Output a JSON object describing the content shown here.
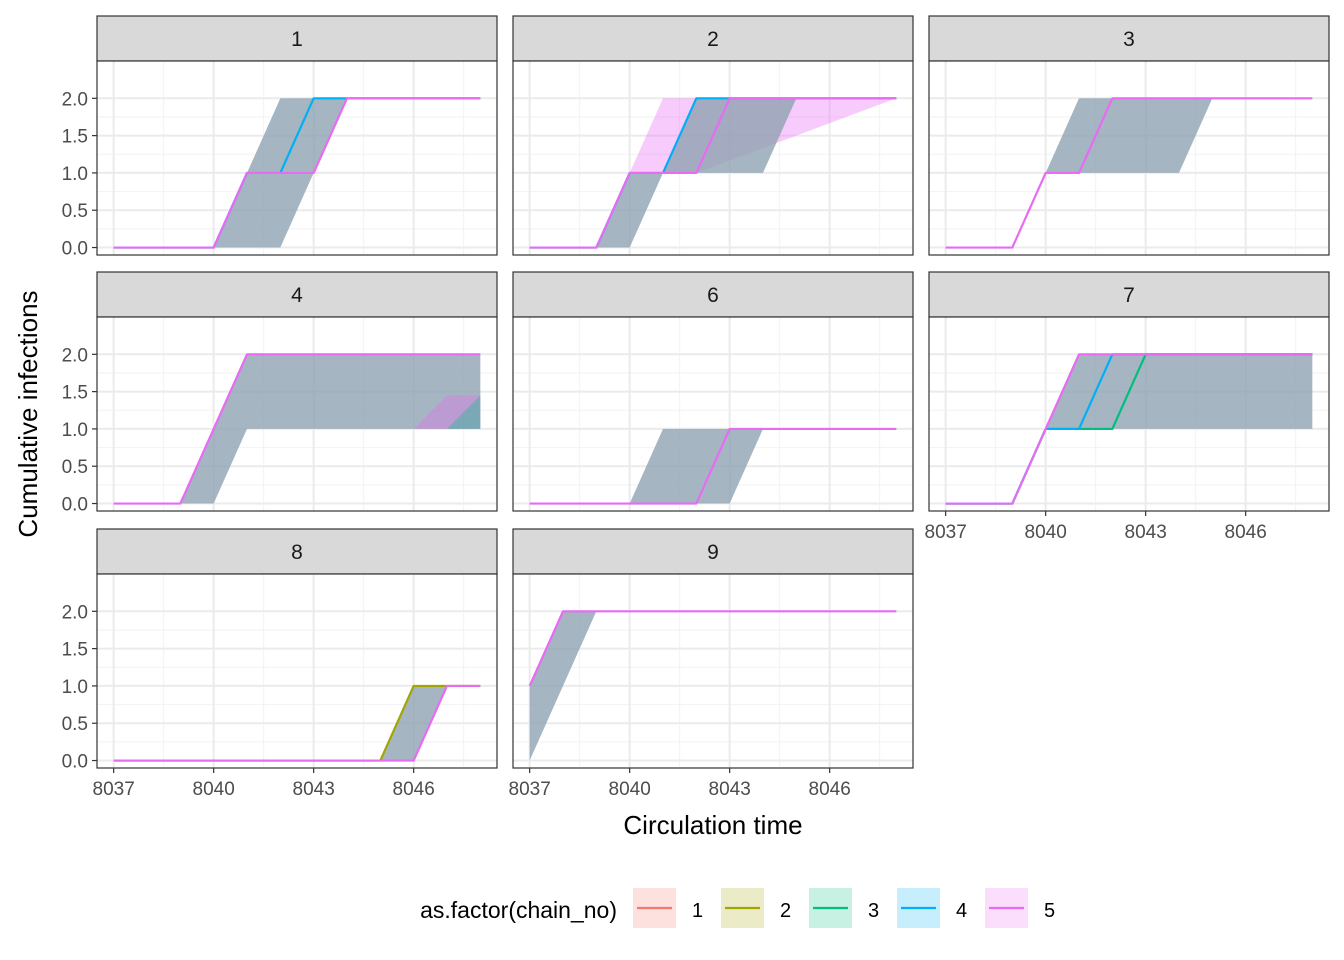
{
  "chart_data": {
    "type": "line",
    "xlabel": "Circulation time",
    "ylabel": "Cumulative infections",
    "xlim": [
      8036.5,
      8048.5
    ],
    "ylim": [
      -0.1,
      2.5
    ],
    "x_ticks": [
      8037,
      8040,
      8043,
      8046
    ],
    "x_tick_labels": [
      "8037",
      "8040",
      "8043",
      "8046"
    ],
    "y_ticks": [
      0,
      0.5,
      1,
      1.5,
      2
    ],
    "y_tick_labels": [
      "0.0",
      "0.5",
      "1.0",
      "1.5",
      "2.0"
    ],
    "grid": true,
    "legend": {
      "title": "as.factor(chain_no)",
      "position": "bottom",
      "entries": [
        {
          "label": "1",
          "color": "#F8766D"
        },
        {
          "label": "2",
          "color": "#A3A500"
        },
        {
          "label": "3",
          "color": "#00BF7D"
        },
        {
          "label": "4",
          "color": "#00B0F6"
        },
        {
          "label": "5",
          "color": "#E76BF3"
        }
      ]
    },
    "band_color": "#8FA3B3",
    "panels": [
      {
        "label": "1",
        "bands": [
          {
            "upper": [
              [
                8037,
                0
              ],
              [
                8040,
                0
              ],
              [
                8042,
                2
              ],
              [
                8048,
                2
              ]
            ],
            "lower": [
              [
                8037,
                0
              ],
              [
                8042,
                0
              ],
              [
                8043,
                1
              ],
              [
                8044,
                2
              ],
              [
                8048,
                2
              ]
            ]
          }
        ],
        "series": [
          {
            "chain": "4",
            "points": [
              [
                8037,
                0
              ],
              [
                8040,
                0
              ],
              [
                8041,
                1
              ],
              [
                8042,
                1
              ],
              [
                8043,
                2
              ],
              [
                8048,
                2
              ]
            ]
          },
          {
            "chain": "5",
            "points": [
              [
                8037,
                0
              ],
              [
                8040,
                0
              ],
              [
                8041,
                1
              ],
              [
                8043,
                1
              ],
              [
                8044,
                2
              ],
              [
                8048,
                2
              ]
            ]
          }
        ]
      },
      {
        "label": "2",
        "bands": [
          {
            "upper": [
              [
                8037,
                0
              ],
              [
                8039,
                0
              ],
              [
                8040,
                1
              ],
              [
                8041,
                2
              ],
              [
                8048,
                2
              ]
            ],
            "lower": [
              [
                8037,
                0
              ],
              [
                8039,
                0
              ],
              [
                8040,
                1
              ],
              [
                8041,
                1
              ],
              [
                8042,
                1
              ],
              [
                8048,
                2
              ]
            ],
            "chain": "5"
          },
          {
            "upper": [
              [
                8037,
                0
              ],
              [
                8039,
                0
              ],
              [
                8040,
                1
              ],
              [
                8041,
                1
              ],
              [
                8042,
                2
              ],
              [
                8048,
                2
              ]
            ],
            "lower": [
              [
                8037,
                0
              ],
              [
                8040,
                0
              ],
              [
                8041,
                1
              ],
              [
                8044,
                1
              ],
              [
                8045,
                2
              ],
              [
                8048,
                2
              ]
            ]
          }
        ],
        "series": [
          {
            "chain": "4",
            "points": [
              [
                8037,
                0
              ],
              [
                8039,
                0
              ],
              [
                8040,
                1
              ],
              [
                8041,
                1
              ],
              [
                8042,
                2
              ],
              [
                8048,
                2
              ]
            ]
          },
          {
            "chain": "5",
            "points": [
              [
                8037,
                0
              ],
              [
                8039,
                0
              ],
              [
                8040,
                1
              ],
              [
                8042,
                1
              ],
              [
                8043,
                2
              ],
              [
                8048,
                2
              ]
            ]
          }
        ]
      },
      {
        "label": "3",
        "bands": [
          {
            "upper": [
              [
                8037,
                0
              ],
              [
                8039,
                0
              ],
              [
                8040,
                1
              ],
              [
                8041,
                2
              ],
              [
                8048,
                2
              ]
            ],
            "lower": [
              [
                8037,
                0
              ],
              [
                8039,
                0
              ],
              [
                8040,
                1
              ],
              [
                8044,
                1
              ],
              [
                8045,
                2
              ],
              [
                8048,
                2
              ]
            ]
          }
        ],
        "series": [
          {
            "chain": "5",
            "points": [
              [
                8037,
                0
              ],
              [
                8039,
                0
              ],
              [
                8040,
                1
              ],
              [
                8041,
                1
              ],
              [
                8042,
                2
              ],
              [
                8048,
                2
              ]
            ]
          }
        ]
      },
      {
        "label": "4",
        "bands": [
          {
            "upper": [
              [
                8037,
                0
              ],
              [
                8039,
                0
              ],
              [
                8041,
                2
              ],
              [
                8048,
                2
              ]
            ],
            "lower": [
              [
                8037,
                0
              ],
              [
                8040,
                0
              ],
              [
                8041,
                1
              ],
              [
                8048,
                1
              ]
            ]
          },
          {
            "upper": [
              [
                8046,
                1
              ],
              [
                8047,
                1.45
              ],
              [
                8048,
                1.45
              ]
            ],
            "lower": [
              [
                8046,
                1
              ],
              [
                8048,
                1
              ]
            ],
            "chain": "5"
          },
          {
            "upper": [
              [
                8047,
                1
              ],
              [
                8048,
                1.45
              ]
            ],
            "lower": [
              [
                8047,
                1
              ],
              [
                8048,
                1
              ]
            ],
            "chain": "3"
          }
        ],
        "series": [
          {
            "chain": "5",
            "points": [
              [
                8037,
                0
              ],
              [
                8039,
                0
              ],
              [
                8041,
                2
              ],
              [
                8048,
                2
              ]
            ]
          }
        ]
      },
      {
        "label": "6",
        "bands": [
          {
            "upper": [
              [
                8037,
                0
              ],
              [
                8040,
                0
              ],
              [
                8041,
                1
              ],
              [
                8048,
                1
              ]
            ],
            "lower": [
              [
                8037,
                0
              ],
              [
                8043,
                0
              ],
              [
                8044,
                1
              ],
              [
                8048,
                1
              ]
            ]
          }
        ],
        "series": [
          {
            "chain": "5",
            "points": [
              [
                8037,
                0
              ],
              [
                8042,
                0
              ],
              [
                8043,
                1
              ],
              [
                8048,
                1
              ]
            ]
          }
        ]
      },
      {
        "label": "7",
        "bands": [
          {
            "upper": [
              [
                8037,
                0
              ],
              [
                8039,
                0
              ],
              [
                8041,
                2
              ],
              [
                8048,
                2
              ]
            ],
            "lower": [
              [
                8037,
                0
              ],
              [
                8039,
                0
              ],
              [
                8040,
                1
              ],
              [
                8048,
                1
              ]
            ]
          }
        ],
        "series": [
          {
            "chain": "3",
            "points": [
              [
                8037,
                0
              ],
              [
                8039,
                0
              ],
              [
                8040,
                1
              ],
              [
                8042,
                1
              ],
              [
                8043,
                2
              ],
              [
                8048,
                2
              ]
            ]
          },
          {
            "chain": "4",
            "points": [
              [
                8037,
                0
              ],
              [
                8039,
                0
              ],
              [
                8040,
                1
              ],
              [
                8041,
                1
              ],
              [
                8042,
                2
              ],
              [
                8048,
                2
              ]
            ]
          },
          {
            "chain": "5",
            "points": [
              [
                8037,
                0
              ],
              [
                8039,
                0
              ],
              [
                8041,
                2
              ],
              [
                8048,
                2
              ]
            ]
          }
        ]
      },
      {
        "label": "8",
        "bands": [
          {
            "upper": [
              [
                8037,
                0
              ],
              [
                8045,
                0
              ],
              [
                8046,
                1
              ],
              [
                8048,
                1
              ]
            ],
            "lower": [
              [
                8037,
                0
              ],
              [
                8046,
                0
              ],
              [
                8047,
                1
              ],
              [
                8048,
                1
              ]
            ]
          }
        ],
        "series": [
          {
            "chain": "2",
            "points": [
              [
                8037,
                0
              ],
              [
                8045,
                0
              ],
              [
                8046,
                1
              ],
              [
                8048,
                1
              ]
            ]
          },
          {
            "chain": "5",
            "points": [
              [
                8037,
                0
              ],
              [
                8046,
                0
              ],
              [
                8047,
                1
              ],
              [
                8048,
                1
              ]
            ]
          }
        ]
      },
      {
        "label": "9",
        "bands": [
          {
            "upper": [
              [
                8037,
                1
              ],
              [
                8038,
                2
              ],
              [
                8048,
                2
              ]
            ],
            "lower": [
              [
                8037,
                0
              ],
              [
                8039,
                2
              ],
              [
                8048,
                2
              ]
            ]
          }
        ],
        "series": [
          {
            "chain": "5",
            "points": [
              [
                8037,
                1
              ],
              [
                8038,
                2
              ],
              [
                8048,
                2
              ]
            ]
          }
        ]
      }
    ]
  }
}
